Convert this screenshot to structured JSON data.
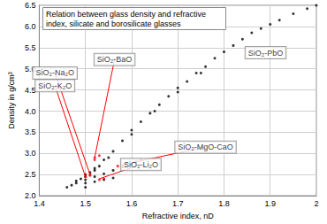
{
  "chart_data": {
    "type": "scatter",
    "title": "Relation between glass density and refractive index, silicate and borosilicate glasses",
    "x_label": "Refractive index, nD",
    "y_label": "Density in g/cm³",
    "xlim": [
      1.4,
      2.0
    ],
    "xticks": [
      1.4,
      1.5,
      1.6,
      1.7,
      1.8,
      1.9,
      2
    ],
    "ylim": [
      2.0,
      6.5
    ],
    "yticks": [
      {
        "value": 2,
        "label": "2.0"
      },
      2.5,
      {
        "value": 3,
        "label": "3.0"
      },
      3.5,
      {
        "value": 4,
        "label": "4.0"
      },
      4.5,
      {
        "value": 5,
        "label": "5.0"
      },
      5.5,
      {
        "value": 6,
        "label": "6.0"
      },
      6.5
    ],
    "grid": true,
    "series": [
      {
        "color": "#000000",
        "x": [
          1.5,
          1.52,
          1.54,
          1.56,
          1.58,
          1.6,
          1.62,
          1.64,
          1.66,
          1.68,
          1.7,
          1.72,
          1.74,
          1.76,
          1.78,
          1.8,
          1.82,
          1.84,
          1.86,
          1.88,
          1.9,
          1.92,
          1.95,
          1.98,
          2.0,
          1.55,
          1.6,
          1.65,
          1.7,
          1.75,
          1.48,
          1.5,
          1.52,
          1.54,
          1.56,
          1.58,
          1.6,
          1.61,
          1.62,
          1.5,
          1.52,
          1.54,
          1.56,
          1.46,
          1.47,
          1.48,
          1.49,
          1.5,
          1.51,
          1.52,
          1.5,
          1.53
        ],
        "values": [
          2.45,
          2.65,
          2.85,
          3.05,
          3.3,
          3.55,
          3.75,
          3.95,
          4.15,
          4.35,
          4.55,
          4.7,
          4.9,
          5.05,
          5.25,
          5.4,
          5.55,
          5.7,
          5.85,
          5.95,
          6.05,
          6.15,
          6.3,
          6.42,
          6.5,
          2.9,
          3.45,
          4.0,
          4.45,
          4.9,
          2.3,
          2.38,
          2.45,
          2.52,
          2.6,
          2.68,
          2.75,
          2.8,
          2.85,
          2.3,
          2.33,
          2.38,
          2.42,
          2.2,
          2.25,
          2.35,
          2.4,
          2.5,
          2.55,
          2.6,
          2.2,
          2.7
        ]
      },
      {
        "color": "#ff0000",
        "x": [
          1.5,
          1.51,
          1.52,
          1.53,
          1.52,
          1.51,
          1.58,
          1.59,
          1.57,
          1.53,
          1.54
        ],
        "values": [
          2.45,
          2.48,
          2.9,
          2.95,
          2.85,
          2.5,
          2.73,
          2.76,
          2.7,
          2.38,
          2.4
        ]
      }
    ],
    "annotations": [
      {
        "text": "SiO₂-PbO",
        "x": 1.89,
        "y": 5.38
      },
      {
        "text": "SiO₂-BaO",
        "x": 1.563,
        "y": 5.22,
        "target": [
          1.52,
          2.9
        ]
      },
      {
        "text": "SiO₂-Na₂O",
        "x": 1.434,
        "y": 4.9,
        "target": [
          1.51,
          2.5
        ]
      },
      {
        "text": "SiO₂-K₂O",
        "x": 1.434,
        "y": 4.6,
        "target": [
          1.5,
          2.45
        ]
      },
      {
        "text": "SiO₂-MgO-CaO",
        "x": 1.76,
        "y": 3.15,
        "target": [
          1.6,
          2.78
        ]
      },
      {
        "text": "SiO₂-Li₂O",
        "x": 1.62,
        "y": 2.74,
        "target": [
          1.53,
          2.4
        ]
      }
    ]
  }
}
